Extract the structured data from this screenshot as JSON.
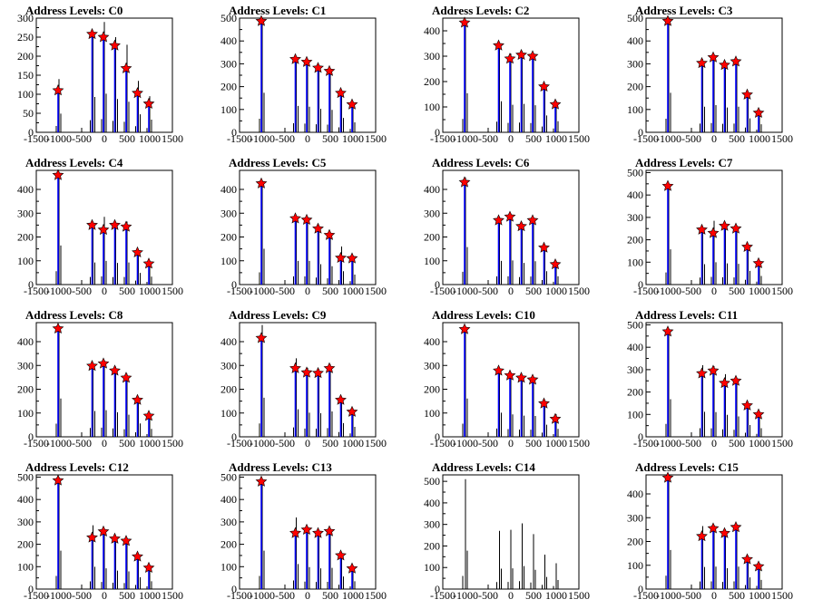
{
  "chart_data": {
    "type": "bar",
    "x_ticks": [
      -1500,
      -1000,
      -500,
      0,
      500,
      1000,
      1500
    ],
    "xlim": [
      -1500,
      1500
    ],
    "peak_x": [
      -1000,
      -250,
      0,
      250,
      500,
      750,
      1000
    ],
    "peak_x_c0": [
      -1000,
      -250,
      0,
      250,
      500,
      750,
      1000
    ],
    "charts": [
      {
        "title": "Address Levels: C0",
        "ylim": [
          0,
          300
        ],
        "y_ticks": [
          0,
          50,
          100,
          150,
          200,
          250,
          300
        ],
        "markers": true,
        "bars": [
          140,
          265,
          290,
          250,
          230,
          135,
          95
        ],
        "fit": [
          110,
          258,
          250,
          228,
          168,
          103,
          75
        ]
      },
      {
        "title": "Address Levels: C1",
        "ylim": [
          0,
          500
        ],
        "y_ticks": [
          0,
          100,
          200,
          300,
          400,
          500
        ],
        "markers": true,
        "bars": [
          495,
          330,
          320,
          295,
          280,
          180,
          125
        ],
        "fit": [
          487,
          320,
          308,
          282,
          268,
          172,
          122
        ]
      },
      {
        "title": "Address Levels: C2",
        "ylim": [
          0,
          450
        ],
        "y_ticks": [
          0,
          100,
          200,
          300,
          400
        ],
        "markers": true,
        "bars": [
          440,
          350,
          310,
          320,
          305,
          190,
          125
        ],
        "fit": [
          432,
          342,
          290,
          305,
          300,
          180,
          110
        ]
      },
      {
        "title": "Address Levels: C3",
        "ylim": [
          0,
          500
        ],
        "y_ticks": [
          0,
          100,
          200,
          300,
          400,
          500
        ],
        "markers": true,
        "bars": [
          495,
          320,
          340,
          310,
          320,
          175,
          100
        ],
        "fit": [
          487,
          303,
          328,
          295,
          310,
          165,
          85
        ]
      },
      {
        "title": "Address Levels: C4",
        "ylim": [
          0,
          480
        ],
        "y_ticks": [
          0,
          100,
          200,
          300,
          400
        ],
        "markers": true,
        "bars": [
          470,
          265,
          285,
          260,
          265,
          140,
          95
        ],
        "fit": [
          460,
          250,
          230,
          250,
          243,
          135,
          88
        ]
      },
      {
        "title": "Address Levels: C5",
        "ylim": [
          0,
          480
        ],
        "y_ticks": [
          0,
          100,
          200,
          300,
          400
        ],
        "markers": true,
        "bars": [
          430,
          285,
          285,
          245,
          220,
          160,
          120
        ],
        "fit": [
          425,
          278,
          272,
          235,
          208,
          112,
          110
        ]
      },
      {
        "title": "Address Levels: C6",
        "ylim": [
          0,
          480
        ],
        "y_ticks": [
          0,
          100,
          200,
          300,
          400
        ],
        "markers": true,
        "bars": [
          450,
          285,
          290,
          260,
          280,
          160,
          100
        ],
        "fit": [
          430,
          270,
          285,
          245,
          270,
          155,
          85
        ]
      },
      {
        "title": "Address Levels: C7",
        "ylim": [
          0,
          510
        ],
        "y_ticks": [
          0,
          100,
          200,
          300,
          400,
          500
        ],
        "markers": true,
        "bars": [
          450,
          260,
          285,
          270,
          265,
          175,
          110
        ],
        "fit": [
          440,
          245,
          230,
          262,
          250,
          168,
          95
        ]
      },
      {
        "title": "Address Levels: C8",
        "ylim": [
          0,
          480
        ],
        "y_ticks": [
          0,
          100,
          200,
          300,
          400
        ],
        "markers": true,
        "bars": [
          460,
          310,
          320,
          295,
          265,
          160,
          95
        ],
        "fit": [
          455,
          298,
          308,
          278,
          248,
          155,
          88
        ]
      },
      {
        "title": "Address Levels: C9",
        "ylim": [
          0,
          480
        ],
        "y_ticks": [
          0,
          100,
          200,
          300,
          400
        ],
        "markers": true,
        "bars": [
          470,
          330,
          290,
          285,
          305,
          165,
          120
        ],
        "fit": [
          415,
          288,
          270,
          268,
          288,
          155,
          105
        ]
      },
      {
        "title": "Address Levels: C10",
        "ylim": [
          0,
          480
        ],
        "y_ticks": [
          0,
          100,
          200,
          300,
          400
        ],
        "markers": true,
        "bars": [
          460,
          290,
          270,
          255,
          250,
          145,
          95
        ],
        "fit": [
          452,
          278,
          258,
          248,
          240,
          140,
          75
        ]
      },
      {
        "title": "Address Levels: C11",
        "ylim": [
          0,
          510
        ],
        "y_ticks": [
          0,
          100,
          200,
          300,
          400,
          500
        ],
        "markers": true,
        "bars": [
          480,
          320,
          315,
          280,
          260,
          150,
          110
        ],
        "fit": [
          470,
          283,
          295,
          240,
          250,
          140,
          100
        ]
      },
      {
        "title": "Address Levels: C12",
        "ylim": [
          0,
          510
        ],
        "y_ticks": [
          0,
          100,
          200,
          300,
          400,
          500
        ],
        "markers": true,
        "bars": [
          490,
          285,
          265,
          235,
          225,
          150,
          100
        ],
        "fit": [
          485,
          230,
          257,
          225,
          215,
          145,
          95
        ]
      },
      {
        "title": "Address Levels: C13",
        "ylim": [
          0,
          510
        ],
        "y_ticks": [
          0,
          100,
          200,
          300,
          400,
          500
        ],
        "markers": true,
        "bars": [
          490,
          320,
          280,
          265,
          270,
          160,
          100
        ],
        "fit": [
          480,
          250,
          265,
          250,
          258,
          150,
          92
        ]
      },
      {
        "title": "Address Levels: C14",
        "ylim": [
          0,
          530
        ],
        "y_ticks": [
          0,
          100,
          200,
          300,
          400,
          500
        ],
        "markers": false,
        "bars": [
          510,
          270,
          275,
          305,
          255,
          160,
          120
        ],
        "fit": []
      },
      {
        "title": "Address Levels: C15",
        "ylim": [
          0,
          480
        ],
        "y_ticks": [
          0,
          100,
          200,
          300,
          400
        ],
        "markers": true,
        "bars": [
          470,
          265,
          270,
          250,
          270,
          140,
          110
        ],
        "fit": [
          468,
          222,
          255,
          235,
          260,
          125,
          95
        ]
      }
    ]
  },
  "colors": {
    "fit_line": "#0000ff",
    "histogram": "#000000",
    "marker_fill": "#ff0000",
    "marker_stroke": "#000000",
    "axis": "#000000",
    "background": "#ffffff"
  }
}
